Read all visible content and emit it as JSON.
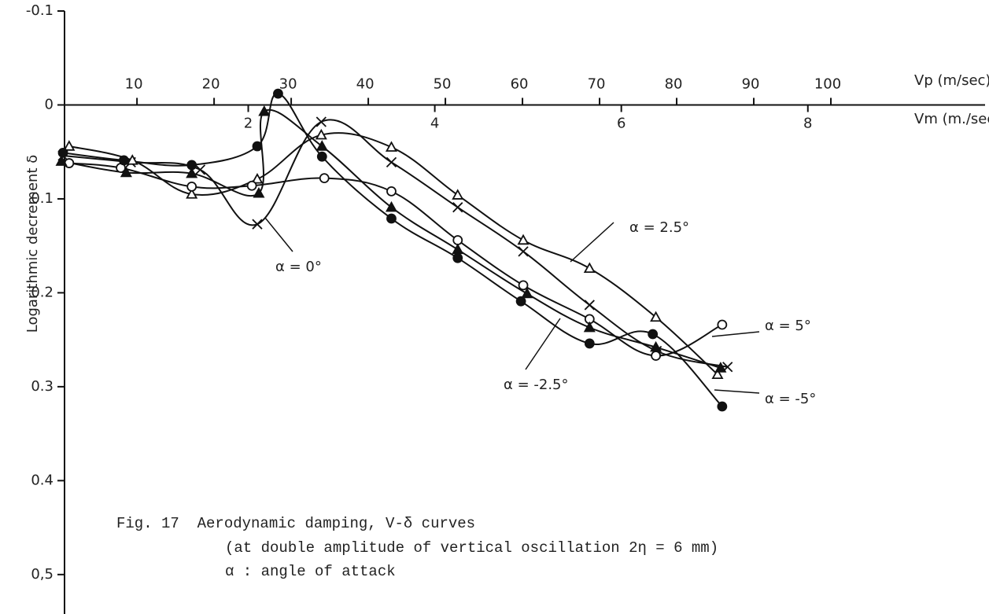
{
  "chart_data": {
    "type": "line",
    "y_label": "Logarithmic decrement δ",
    "x_label": "Vp (m/sec)",
    "x2_label": "Vm (m./sec)",
    "caption": [
      "Fig. 17  Aerodynamic damping, V-δ curves",
      "(at double amplitude of vertical oscillation 2η = 6 mm)",
      "α : angle of attack"
    ],
    "xlim": [
      0.6,
      120
    ],
    "xticks": [
      10,
      20,
      30,
      40,
      50,
      60,
      70,
      80,
      90,
      100
    ],
    "x2lim": [
      0.03,
      9.9
    ],
    "x2ticks": [
      2,
      4,
      6,
      8
    ],
    "ylim": [
      -0.1,
      0.542
    ],
    "y_inverted": true,
    "yticks": [
      -0.1,
      0,
      0.1,
      0.2,
      0.3,
      0.4,
      {
        "value": 0.5,
        "label": "0,5"
      }
    ],
    "color": "#111111",
    "series": [
      {
        "name": "α = 0°",
        "marker": "cross",
        "x": [
          0.4,
          9.2,
          18.2,
          25.6,
          33.9,
          43,
          51.6,
          60.1,
          68.7,
          77.4,
          86.6
        ],
        "values": [
          0.054,
          0.061,
          0.069,
          0.127,
          0.018,
          0.061,
          0.109,
          0.156,
          0.213,
          0.262,
          0.279
        ]
      },
      {
        "name": "α = 2.5°",
        "marker": "triangle-open",
        "x": [
          1.2,
          9.4,
          17.1,
          25.6,
          33.9,
          43,
          51.6,
          60.1,
          68.7,
          77.3,
          85.3
        ],
        "values": [
          0.044,
          0.059,
          0.095,
          0.079,
          0.032,
          0.045,
          0.096,
          0.144,
          0.174,
          0.226,
          0.287
        ]
      },
      {
        "name": "α = 5°",
        "marker": "circle-open",
        "x": [
          1.2,
          7.9,
          17.1,
          24.9,
          34.3,
          43,
          51.6,
          60.1,
          68.7,
          77.3,
          85.9
        ],
        "values": [
          0.062,
          0.067,
          0.087,
          0.086,
          0.078,
          0.092,
          0.144,
          0.192,
          0.228,
          0.267,
          0.234
        ]
      },
      {
        "name": "α = -2.5°",
        "marker": "triangle-filled",
        "x": [
          0.2,
          8.6,
          17.1,
          25.8,
          26.5,
          34,
          43,
          51.6,
          60.6,
          68.7,
          77.3,
          85.7
        ],
        "values": [
          0.06,
          0.072,
          0.073,
          0.094,
          0.007,
          0.044,
          0.109,
          0.154,
          0.201,
          0.237,
          0.258,
          0.28
        ]
      },
      {
        "name": "α = -5°",
        "marker": "circle-filled",
        "x": [
          0.4,
          8.3,
          17.1,
          25.6,
          28.3,
          34,
          43,
          51.6,
          59.8,
          68.7,
          76.9,
          85.9
        ],
        "values": [
          0.051,
          0.059,
          0.064,
          0.044,
          -0.012,
          0.055,
          0.121,
          0.163,
          0.209,
          0.254,
          0.244,
          0.321
        ]
      }
    ]
  }
}
